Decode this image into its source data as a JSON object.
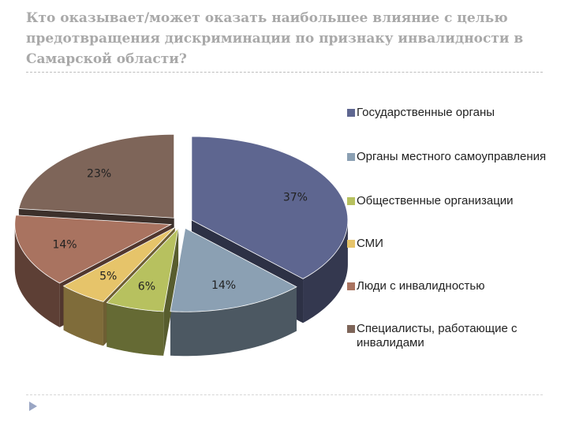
{
  "slide": {
    "title": "Кто оказывает/может оказать наибольшее влияние с целью предотвращения дискриминации по  признаку инвалидности в Самарской области?"
  },
  "chart_data": {
    "type": "pie",
    "categories": [
      "Государственные органы",
      "Органы местного самоуправления",
      "Общественные организации",
      "СМИ",
      "Люди с инвалидностью",
      "Специалисты, работающие с инвалидами"
    ],
    "values": [
      37,
      14,
      6,
      5,
      14,
      23
    ],
    "data_labels": [
      "37%",
      "14%",
      "6%",
      "5%",
      "14%",
      "23%"
    ],
    "colors": [
      "#5e6690",
      "#8ba0b3",
      "#b7c15f",
      "#e6c46a",
      "#a97360",
      "#7e6559"
    ],
    "legend": "right",
    "style": "3d-exploded"
  }
}
